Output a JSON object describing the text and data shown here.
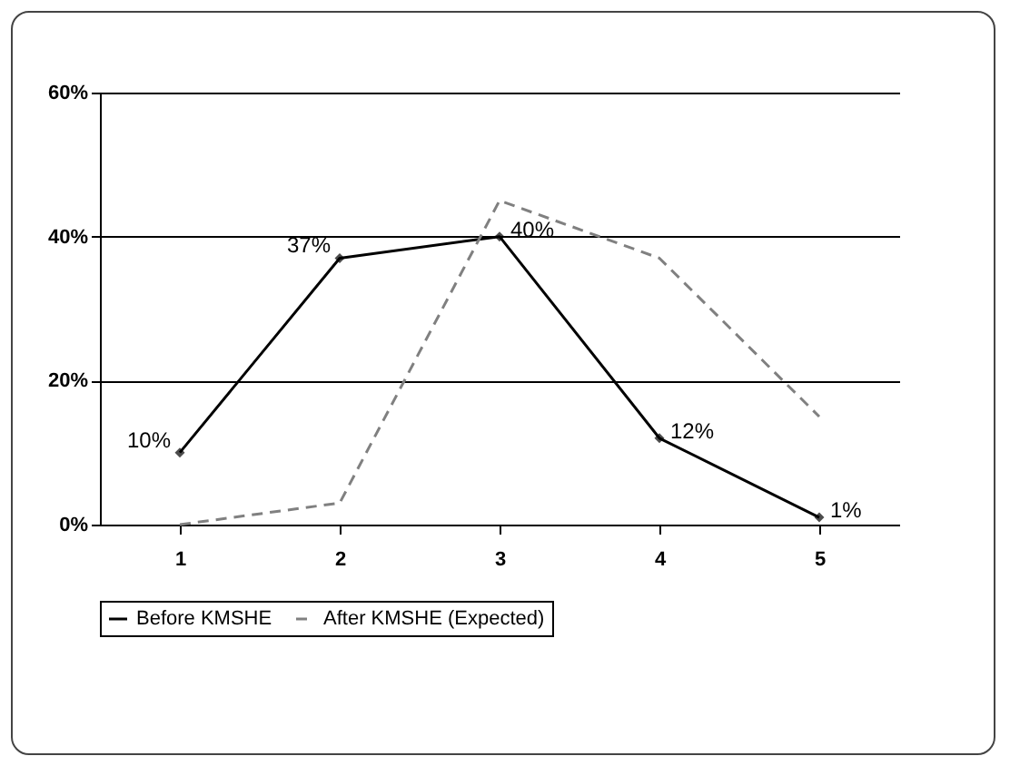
{
  "chart_data": {
    "type": "line",
    "categories": [
      "1",
      "2",
      "3",
      "4",
      "5"
    ],
    "series": [
      {
        "name": "Before KMSHE",
        "color": "#000000",
        "values": [
          10,
          37,
          40,
          12,
          1
        ],
        "marker": "diamond",
        "line_style": "solid",
        "value_labels": [
          "10%",
          "37%",
          "40%",
          "12%",
          "1%"
        ]
      },
      {
        "name": "After KMSHE (Expected)",
        "color": "#808080",
        "values": [
          0,
          3,
          45,
          37,
          15
        ],
        "marker": "none",
        "line_style": "dashed"
      }
    ],
    "ylim": [
      0,
      60
    ],
    "yticks": [
      {
        "value": 0,
        "label": "0%"
      },
      {
        "value": 20,
        "label": "20%"
      },
      {
        "value": 40,
        "label": "40%"
      },
      {
        "value": 60,
        "label": "60%"
      }
    ],
    "grid": "y",
    "legend": "bottom"
  }
}
